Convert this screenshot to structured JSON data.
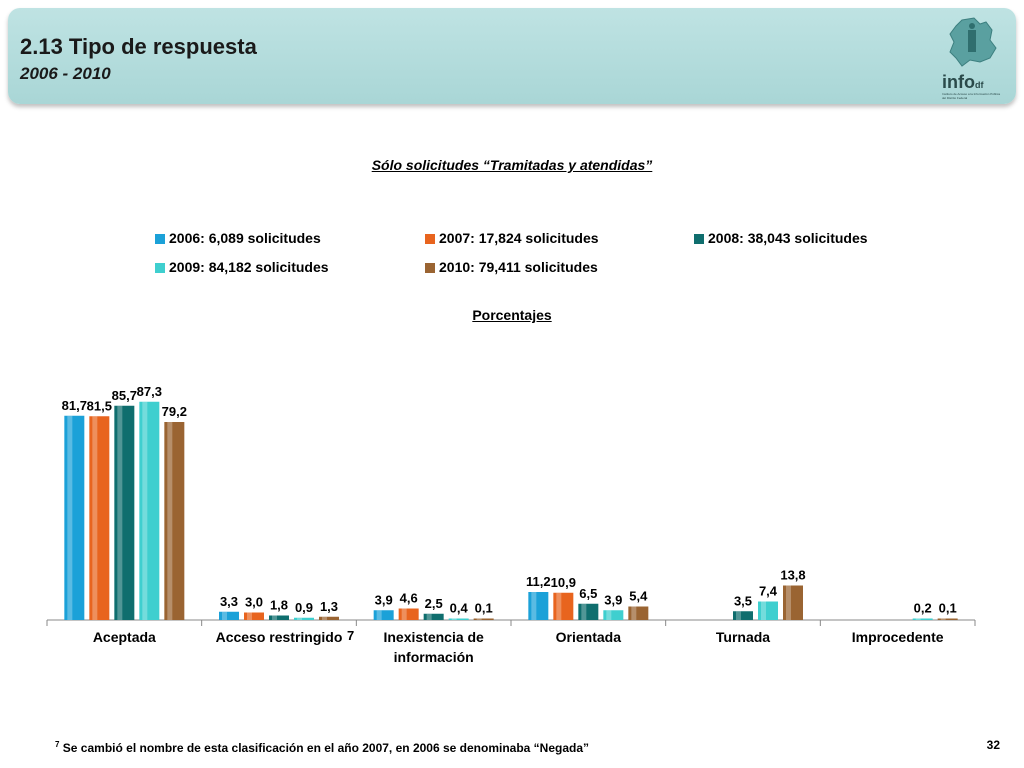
{
  "header": {
    "title": "2.13 Tipo de respuesta",
    "subtitle": "2006 - 2010",
    "logo_text": "info",
    "logo_suffix": "df",
    "logo_caption": "Instituto de Acceso a la Información Pública del Distrito Federal"
  },
  "footnote": {
    "marker": "7",
    "text": "Se cambió el nombre de esta clasificación en el  año 2007, en 2006 se denominaba “Negada”"
  },
  "page_number": "32",
  "category_marker": "7",
  "chart_data": {
    "type": "bar",
    "title": "Sólo solicitudes “Tramitadas y atendidas”",
    "unit_label": "Porcentajes",
    "categories": [
      "Aceptada",
      "Acceso restringido",
      "Inexistencia de información",
      "Orientada",
      "Turnada",
      "Improcedente"
    ],
    "series": [
      {
        "name": "2006: 6,089 solicitudes",
        "color": "#1ba1d8",
        "values": [
          81.7,
          3.3,
          3.9,
          11.2,
          null,
          null
        ],
        "labels": [
          "81,7",
          "3,3",
          "3,9",
          "11,2",
          "",
          ""
        ]
      },
      {
        "name": "2007: 17,824 solicitudes",
        "color": "#e8641e",
        "values": [
          81.5,
          3.0,
          4.6,
          10.9,
          null,
          null
        ],
        "labels": [
          "81,5",
          "3,0",
          "4,6",
          "10,9",
          "",
          ""
        ]
      },
      {
        "name": "2008: 38,043 solicitudes",
        "color": "#0f6e6e",
        "values": [
          85.7,
          1.8,
          2.5,
          6.5,
          3.5,
          null
        ],
        "labels": [
          "85,7",
          "1,8",
          "2,5",
          "6,5",
          "3,5",
          ""
        ]
      },
      {
        "name": "2009: 84,182 solicitudes",
        "color": "#3fcfcf",
        "values": [
          87.3,
          0.9,
          0.4,
          3.9,
          7.4,
          0.2
        ],
        "labels": [
          "87,3",
          "0,9",
          "0,4",
          "3,9",
          "7,4",
          "0,2"
        ]
      },
      {
        "name": "2010: 79,411 solicitudes",
        "color": "#9a6432",
        "values": [
          79.2,
          1.3,
          0.1,
          5.4,
          13.8,
          0.1
        ],
        "labels": [
          "79,2",
          "1,3",
          "0,1",
          "5,4",
          "13,8",
          "0,1"
        ]
      }
    ],
    "ylim": [
      0,
      100
    ],
    "grid": false,
    "legend_position": "top"
  }
}
